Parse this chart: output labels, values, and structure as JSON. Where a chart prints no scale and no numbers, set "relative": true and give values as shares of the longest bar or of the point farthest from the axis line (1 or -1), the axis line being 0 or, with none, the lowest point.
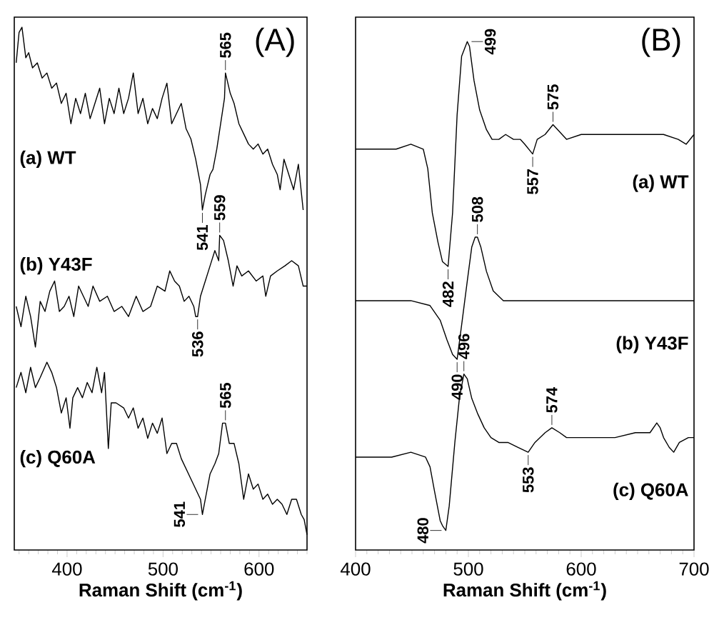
{
  "chart_data": [
    {
      "type": "line",
      "relative": true,
      "xlabel": "Raman Shift (cm$^{-1}$)",
      "xlim": [
        345,
        650
      ],
      "xticks": [
        400,
        500,
        600
      ],
      "tick_labels": "x",
      "series": [
        {
          "name": "(a) WT",
          "color": "#000000",
          "x": [
            347,
            350,
            353,
            357,
            360,
            364,
            369,
            374,
            379,
            384,
            389,
            394,
            399,
            404,
            409,
            414,
            419,
            424,
            429,
            434,
            439,
            444,
            449,
            454,
            459,
            464,
            469,
            474,
            479,
            484,
            489,
            494,
            499,
            504,
            509,
            514,
            519,
            524,
            529,
            534,
            539,
            541,
            544,
            549,
            552,
            556,
            560,
            564,
            565,
            570,
            574,
            579,
            584,
            589,
            594,
            599,
            604,
            609,
            614,
            619,
            622,
            626,
            631,
            636,
            641,
            646
          ],
          "values": [
            0.93,
            0.99,
            1.0,
            0.94,
            0.95,
            0.92,
            0.93,
            0.9,
            0.91,
            0.88,
            0.89,
            0.85,
            0.87,
            0.81,
            0.86,
            0.83,
            0.87,
            0.82,
            0.85,
            0.88,
            0.81,
            0.86,
            0.83,
            0.88,
            0.83,
            0.86,
            0.91,
            0.83,
            0.86,
            0.81,
            0.84,
            0.82,
            0.86,
            0.89,
            0.81,
            0.83,
            0.85,
            0.8,
            0.78,
            0.74,
            0.69,
            0.64,
            0.67,
            0.71,
            0.72,
            0.76,
            0.81,
            0.86,
            0.91,
            0.87,
            0.85,
            0.81,
            0.79,
            0.77,
            0.76,
            0.77,
            0.75,
            0.76,
            0.73,
            0.71,
            0.68,
            0.74,
            0.71,
            0.68,
            0.73,
            0.64
          ]
        },
        {
          "name": "(b) Y43F",
          "color": "#000000",
          "x": [
            347,
            352,
            357,
            362,
            367,
            372,
            377,
            382,
            387,
            392,
            397,
            402,
            407,
            412,
            417,
            422,
            427,
            434,
            442,
            449,
            457,
            464,
            472,
            479,
            487,
            494,
            502,
            507,
            512,
            517,
            522,
            527,
            532,
            534,
            536,
            539,
            544,
            549,
            554,
            558,
            559,
            563,
            568,
            573,
            577,
            582,
            589,
            597,
            604,
            607,
            612,
            619,
            627,
            634,
            641,
            646,
            650
          ],
          "values": [
            0.45,
            0.41,
            0.47,
            0.43,
            0.37,
            0.46,
            0.44,
            0.48,
            0.5,
            0.44,
            0.45,
            0.47,
            0.43,
            0.49,
            0.47,
            0.45,
            0.49,
            0.46,
            0.47,
            0.44,
            0.45,
            0.43,
            0.47,
            0.44,
            0.45,
            0.49,
            0.48,
            0.52,
            0.5,
            0.49,
            0.46,
            0.47,
            0.45,
            0.43,
            0.43,
            0.47,
            0.5,
            0.53,
            0.56,
            0.54,
            0.59,
            0.58,
            0.54,
            0.49,
            0.53,
            0.51,
            0.52,
            0.5,
            0.51,
            0.47,
            0.51,
            0.52,
            0.53,
            0.54,
            0.53,
            0.49,
            0.49
          ]
        },
        {
          "name": "(c) Q60A",
          "color": "#000000",
          "x": [
            347,
            352,
            357,
            362,
            367,
            372,
            379,
            384,
            389,
            394,
            399,
            403,
            406,
            411,
            416,
            421,
            426,
            431,
            436,
            439,
            443,
            446,
            451,
            459,
            464,
            469,
            474,
            479,
            484,
            489,
            494,
            499,
            504,
            509,
            514,
            519,
            524,
            529,
            534,
            539,
            541,
            544,
            549,
            554,
            558,
            562,
            565,
            569,
            574,
            579,
            584,
            589,
            594,
            599,
            604,
            609,
            614,
            619,
            624,
            629,
            634,
            639,
            644,
            647,
            650
          ],
          "values": [
            0.29,
            0.32,
            0.28,
            0.33,
            0.29,
            0.31,
            0.34,
            0.32,
            0.29,
            0.24,
            0.27,
            0.21,
            0.27,
            0.29,
            0.27,
            0.3,
            0.28,
            0.33,
            0.28,
            0.32,
            0.17,
            0.26,
            0.26,
            0.25,
            0.23,
            0.25,
            0.21,
            0.23,
            0.19,
            0.22,
            0.2,
            0.23,
            0.16,
            0.18,
            0.18,
            0.15,
            0.13,
            0.11,
            0.09,
            0.07,
            0.04,
            0.07,
            0.12,
            0.14,
            0.16,
            0.22,
            0.22,
            0.18,
            0.18,
            0.14,
            0.07,
            0.12,
            0.09,
            0.1,
            0.07,
            0.08,
            0.06,
            0.07,
            0.06,
            0.04,
            0.07,
            0.07,
            0.04,
            0.03,
            0.0
          ]
        }
      ],
      "annotations": [
        "(A)",
        {
          "text": "565",
          "x": 565,
          "y": 0.91
        },
        {
          "text": "541",
          "x": 541,
          "y": 0.64
        },
        {
          "text": "559",
          "x": 559,
          "y": 0.59
        },
        {
          "text": "536",
          "x": 536,
          "y": 0.43
        },
        {
          "text": "565",
          "x": 565,
          "y": 0.22
        },
        {
          "text": "541",
          "x": 541,
          "y": 0.04
        }
      ]
    },
    {
      "type": "line",
      "relative": true,
      "xlabel": "Raman Shift (cm$^{-1}$)",
      "xlim": [
        400,
        700
      ],
      "xticks": [
        400,
        500,
        600,
        700
      ],
      "tick_labels": "x",
      "series": [
        {
          "name": "(a) WT",
          "color": "#000000",
          "x": [
            400,
            410,
            423,
            436,
            449,
            460,
            464,
            468,
            473,
            477,
            482,
            486,
            490,
            494,
            499,
            501,
            505,
            510,
            516,
            521,
            527,
            533,
            540,
            546,
            550,
            557,
            561,
            568,
            575,
            587,
            600,
            613,
            626,
            639,
            656,
            673,
            686,
            693,
            700
          ],
          "values": [
            0.78,
            0.78,
            0.78,
            0.78,
            0.79,
            0.78,
            0.74,
            0.65,
            0.59,
            0.55,
            0.54,
            0.65,
            0.85,
            0.97,
            1.0,
            0.99,
            0.92,
            0.86,
            0.82,
            0.8,
            0.8,
            0.81,
            0.8,
            0.8,
            0.79,
            0.77,
            0.8,
            0.81,
            0.83,
            0.8,
            0.81,
            0.81,
            0.81,
            0.81,
            0.81,
            0.81,
            0.8,
            0.79,
            0.81
          ]
        },
        {
          "name": "(b) Y43F",
          "color": "#000000",
          "x": [
            400,
            423,
            449,
            466,
            475,
            481,
            486,
            490,
            494,
            499,
            503,
            506,
            508,
            511,
            516,
            522,
            531,
            548,
            570,
            591,
            613,
            635,
            656,
            678,
            700
          ],
          "values": [
            0.47,
            0.47,
            0.47,
            0.46,
            0.43,
            0.39,
            0.36,
            0.35,
            0.42,
            0.51,
            0.58,
            0.6,
            0.6,
            0.58,
            0.53,
            0.49,
            0.47,
            0.47,
            0.47,
            0.47,
            0.47,
            0.47,
            0.47,
            0.47,
            0.47
          ]
        },
        {
          "name": "(c) Q60A",
          "color": "#000000",
          "x": [
            400,
            414,
            432,
            449,
            462,
            466,
            470,
            475,
            477,
            480,
            483,
            488,
            492,
            496,
            499,
            503,
            508,
            514,
            520,
            527,
            535,
            544,
            553,
            559,
            568,
            574,
            581,
            587,
            600,
            613,
            630,
            648,
            661,
            667,
            670,
            673,
            678,
            682,
            687,
            695,
            700
          ],
          "values": [
            0.15,
            0.15,
            0.15,
            0.16,
            0.15,
            0.13,
            0.08,
            0.02,
            0.01,
            0.0,
            0.05,
            0.18,
            0.27,
            0.32,
            0.31,
            0.27,
            0.24,
            0.21,
            0.19,
            0.18,
            0.18,
            0.17,
            0.16,
            0.18,
            0.2,
            0.21,
            0.2,
            0.19,
            0.19,
            0.19,
            0.19,
            0.2,
            0.2,
            0.22,
            0.21,
            0.19,
            0.17,
            0.16,
            0.18,
            0.19,
            0.19
          ]
        }
      ],
      "annotations": [
        "(B)",
        {
          "text": "499",
          "x": 499,
          "y": 1.0
        },
        {
          "text": "575",
          "x": 575,
          "y": 0.83
        },
        {
          "text": "557",
          "x": 557,
          "y": 0.77
        },
        {
          "text": "482",
          "x": 482,
          "y": 0.54
        },
        {
          "text": "508",
          "x": 508,
          "y": 0.6
        },
        {
          "text": "490",
          "x": 490,
          "y": 0.35
        },
        {
          "text": "496",
          "x": 496,
          "y": 0.32
        },
        {
          "text": "480",
          "x": 480,
          "y": 0.0
        },
        {
          "text": "553",
          "x": 553,
          "y": 0.16
        },
        {
          "text": "574",
          "x": 574,
          "y": 0.21
        }
      ]
    }
  ]
}
